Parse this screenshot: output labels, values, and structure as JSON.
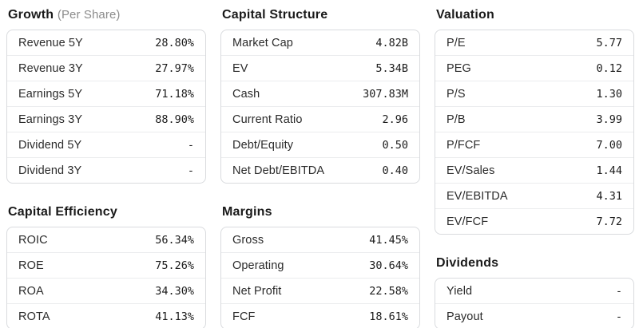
{
  "colors": {
    "background": "#ffffff",
    "title": "#1a1a1a",
    "subtitle": "#8b8b8b",
    "panel_border": "#d9dbde",
    "row_separator": "#ebecee",
    "label": "#2b2b2b",
    "value": "#1b1b1b"
  },
  "sections": [
    {
      "id": "growth",
      "title": "Growth",
      "subtitle": "(Per Share)",
      "rows": [
        {
          "label": "Revenue 5Y",
          "value": "28.80%"
        },
        {
          "label": "Revenue 3Y",
          "value": "27.97%"
        },
        {
          "label": "Earnings 5Y",
          "value": "71.18%"
        },
        {
          "label": "Earnings 3Y",
          "value": "88.90%"
        },
        {
          "label": "Dividend 5Y",
          "value": "-"
        },
        {
          "label": "Dividend 3Y",
          "value": "-"
        }
      ]
    },
    {
      "id": "capital-structure",
      "title": "Capital Structure",
      "rows": [
        {
          "label": "Market Cap",
          "value": "4.82B"
        },
        {
          "label": "EV",
          "value": "5.34B"
        },
        {
          "label": "Cash",
          "value": "307.83M"
        },
        {
          "label": "Current Ratio",
          "value": "2.96"
        },
        {
          "label": "Debt/Equity",
          "value": "0.50"
        },
        {
          "label": "Net Debt/EBITDA",
          "value": "0.40"
        }
      ]
    },
    {
      "id": "valuation",
      "title": "Valuation",
      "rows": [
        {
          "label": "P/E",
          "value": "5.77"
        },
        {
          "label": "PEG",
          "value": "0.12"
        },
        {
          "label": "P/S",
          "value": "1.30"
        },
        {
          "label": "P/B",
          "value": "3.99"
        },
        {
          "label": "P/FCF",
          "value": "7.00"
        },
        {
          "label": "EV/Sales",
          "value": "1.44"
        },
        {
          "label": "EV/EBITDA",
          "value": "4.31"
        },
        {
          "label": "EV/FCF",
          "value": "7.72"
        }
      ]
    },
    {
      "id": "capital-efficiency",
      "title": "Capital Efficiency",
      "rows": [
        {
          "label": "ROIC",
          "value": "56.34%"
        },
        {
          "label": "ROE",
          "value": "75.26%"
        },
        {
          "label": "ROA",
          "value": "34.30%"
        },
        {
          "label": "ROTA",
          "value": "41.13%"
        }
      ]
    },
    {
      "id": "margins",
      "title": "Margins",
      "rows": [
        {
          "label": "Gross",
          "value": "41.45%"
        },
        {
          "label": "Operating",
          "value": "30.64%"
        },
        {
          "label": "Net Profit",
          "value": "22.58%"
        },
        {
          "label": "FCF",
          "value": "18.61%"
        }
      ]
    },
    {
      "id": "dividends",
      "title": "Dividends",
      "rows": [
        {
          "label": "Yield",
          "value": "-"
        },
        {
          "label": "Payout",
          "value": "-"
        }
      ]
    }
  ]
}
